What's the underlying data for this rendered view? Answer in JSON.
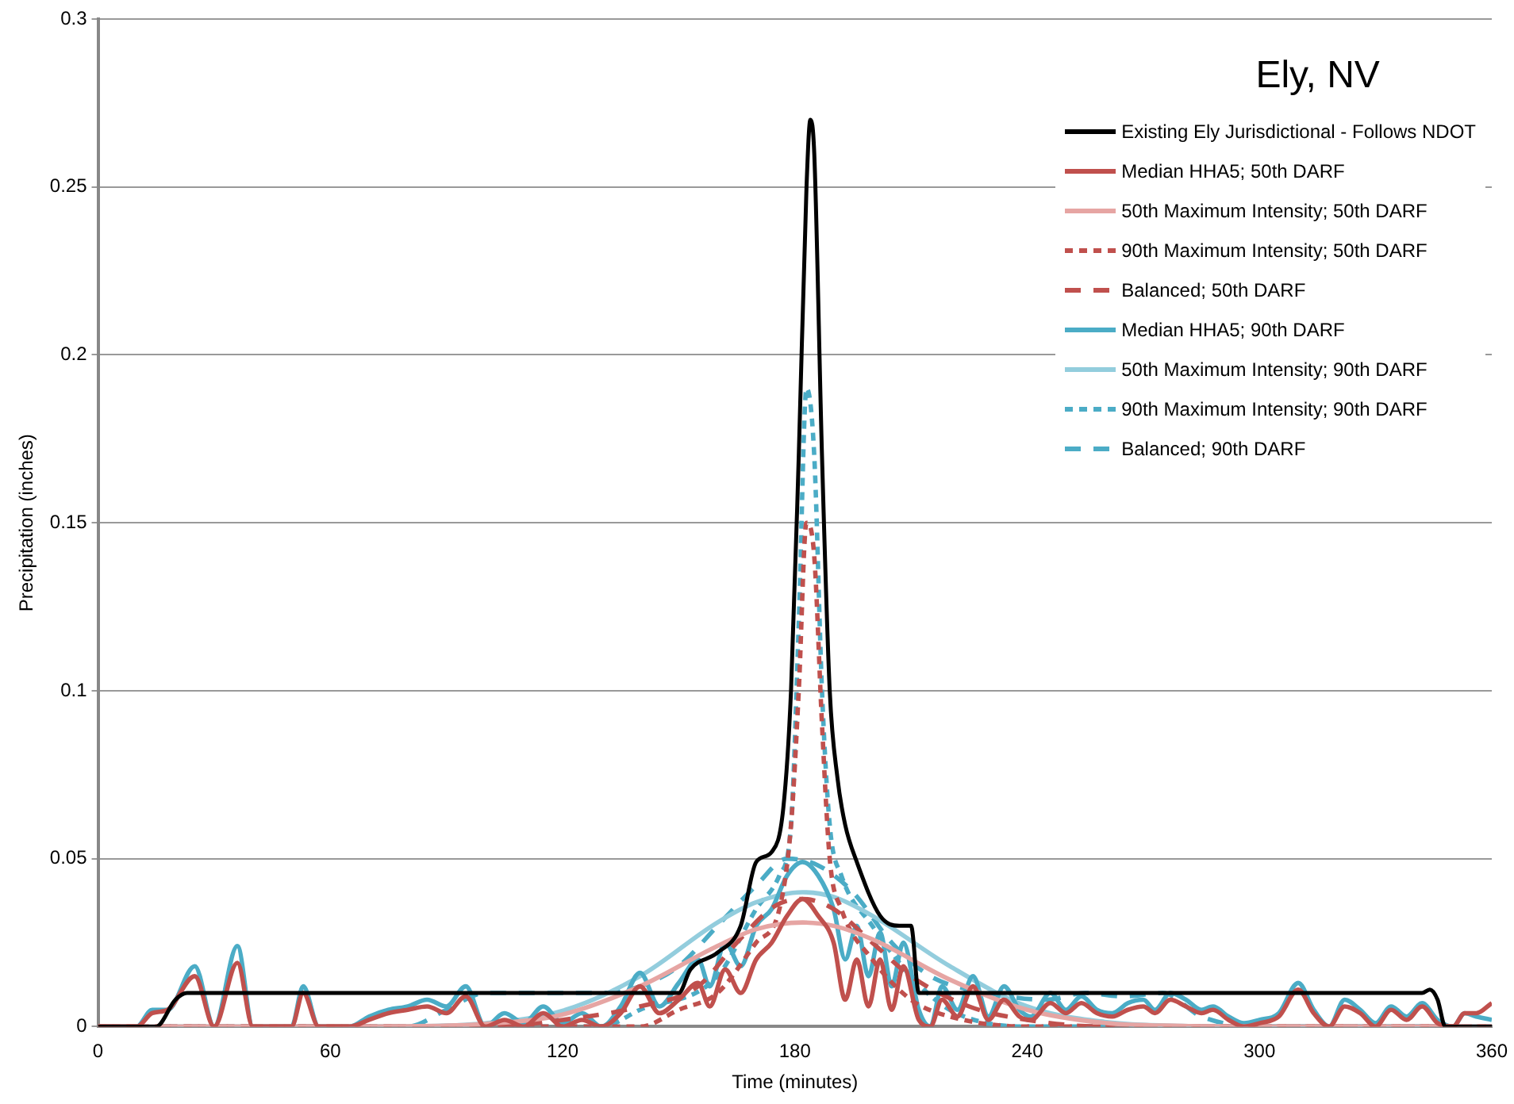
{
  "chart_data": {
    "type": "line",
    "title": "Ely, NV",
    "xlabel": "Time (minutes)",
    "ylabel": "Precipitation (inches)",
    "xlim": [
      0,
      360
    ],
    "xticks": [
      0,
      60,
      120,
      180,
      240,
      300,
      360
    ],
    "ylim": [
      0,
      0.3
    ],
    "yticks": [
      0,
      0.05,
      0.1,
      0.15,
      0.2,
      0.25,
      0.3
    ],
    "grid": "y",
    "legend": "top right",
    "marker": "none",
    "series": [
      {
        "name": "Existing Ely Jurisdictional - Follows NDOT",
        "color": "#000000",
        "line_style": "solid",
        "x": [
          0,
          15,
          20,
          23,
          150,
          153,
          160,
          166,
          170,
          174,
          177,
          179,
          181,
          183,
          184,
          185,
          187,
          189,
          191,
          193,
          196,
          202,
          207,
          210,
          212,
          342,
          344,
          346,
          348,
          360
        ],
        "values": [
          0,
          0,
          0.008,
          0.01,
          0.01,
          0.017,
          0.022,
          0.03,
          0.049,
          0.052,
          0.065,
          0.1,
          0.17,
          0.25,
          0.27,
          0.26,
          0.17,
          0.1,
          0.074,
          0.06,
          0.049,
          0.033,
          0.03,
          0.03,
          0.01,
          0.01,
          0.011,
          0.008,
          0,
          0
        ]
      },
      {
        "name": "Median HHA5; 50th DARF",
        "color": "#c0504d",
        "line_style": "solid",
        "x": [
          0,
          10,
          14,
          18,
          25,
          30,
          36,
          40,
          50,
          53,
          57,
          65,
          70,
          75,
          80,
          85,
          90,
          95,
          100,
          105,
          110,
          115,
          120,
          125,
          130,
          135,
          140,
          145,
          150,
          155,
          158,
          162,
          166,
          170,
          174,
          178,
          182,
          186,
          190,
          193,
          196,
          199,
          202,
          205,
          208,
          212,
          215,
          218,
          222,
          226,
          230,
          234,
          238,
          241,
          246,
          250,
          254,
          258,
          262,
          266,
          270,
          273,
          277,
          281,
          285,
          288,
          292,
          296,
          300,
          305,
          310,
          314,
          318,
          322,
          326,
          330,
          334,
          338,
          342,
          346,
          350,
          353,
          356,
          360
        ],
        "values": [
          0,
          0,
          0.004,
          0.005,
          0.015,
          0,
          0.019,
          0,
          0,
          0.01,
          0,
          0,
          0.002,
          0.004,
          0.005,
          0.006,
          0.004,
          0.009,
          0,
          0.002,
          0,
          0.004,
          0,
          0.002,
          0,
          0.004,
          0.012,
          0.004,
          0.008,
          0.013,
          0.006,
          0.017,
          0.01,
          0.02,
          0.025,
          0.033,
          0.038,
          0.033,
          0.025,
          0.008,
          0.02,
          0.006,
          0.02,
          0.005,
          0.018,
          0.002,
          0,
          0.008,
          0.003,
          0.012,
          0.002,
          0.008,
          0.003,
          0.002,
          0.007,
          0.004,
          0.007,
          0.004,
          0.003,
          0.005,
          0.006,
          0.004,
          0.008,
          0.006,
          0.004,
          0.005,
          0.002,
          0,
          0.001,
          0.003,
          0.011,
          0.004,
          0,
          0.006,
          0.004,
          0,
          0.005,
          0.002,
          0.006,
          0.001,
          0,
          0.004,
          0.004,
          0.007
        ]
      },
      {
        "name": "50th Maximum Intensity; 50th DARF",
        "color": "#e6a5a3",
        "line_style": "solid",
        "x": [
          0,
          60,
          80,
          100,
          120,
          140,
          160,
          170,
          182,
          190,
          200,
          220,
          240,
          260,
          280,
          300,
          360
        ],
        "values": [
          0,
          0,
          0.0001,
          0.0008,
          0.0036,
          0.012,
          0.024,
          0.029,
          0.031,
          0.03,
          0.026,
          0.014,
          0.005,
          0.0011,
          0.0002,
          0,
          0
        ]
      },
      {
        "name": "90th Maximum Intensity; 50th DARF",
        "color": "#c0504d",
        "line_style": "dotted",
        "x": [
          0,
          140,
          150,
          160,
          170,
          176,
          179,
          181,
          183,
          185,
          187,
          189,
          192,
          200,
          210,
          220,
          240,
          360
        ],
        "values": [
          0,
          0,
          0.005,
          0.01,
          0.025,
          0.035,
          0.06,
          0.1,
          0.15,
          0.14,
          0.09,
          0.05,
          0.035,
          0.02,
          0.008,
          0.003,
          0,
          0
        ]
      },
      {
        "name": "Balanced; 50th DARF",
        "color": "#c0504d",
        "line_style": "dashed",
        "x": [
          0,
          100,
          120,
          140,
          155,
          165,
          175,
          182,
          190,
          200,
          210,
          225,
          240,
          260,
          360
        ],
        "values": [
          0,
          0,
          0.002,
          0.006,
          0.012,
          0.025,
          0.036,
          0.038,
          0.035,
          0.025,
          0.015,
          0.006,
          0.002,
          0,
          0
        ]
      },
      {
        "name": "Median HHA5; 90th DARF",
        "color": "#4bacc6",
        "line_style": "solid",
        "x": [
          0,
          10,
          14,
          18,
          25,
          30,
          36,
          40,
          50,
          53,
          57,
          65,
          70,
          75,
          80,
          85,
          90,
          95,
          100,
          105,
          110,
          115,
          120,
          125,
          130,
          135,
          140,
          145,
          150,
          155,
          158,
          162,
          166,
          170,
          174,
          178,
          182,
          186,
          190,
          193,
          196,
          199,
          202,
          205,
          208,
          212,
          215,
          218,
          222,
          226,
          230,
          234,
          238,
          241,
          246,
          250,
          254,
          258,
          262,
          266,
          270,
          273,
          277,
          281,
          285,
          288,
          292,
          296,
          300,
          305,
          310,
          314,
          318,
          322,
          326,
          330,
          334,
          338,
          342,
          346,
          350,
          353,
          356,
          360
        ],
        "values": [
          0,
          0,
          0.005,
          0.005,
          0.018,
          0,
          0.024,
          0,
          0,
          0.012,
          0,
          0,
          0.003,
          0.005,
          0.006,
          0.008,
          0.006,
          0.012,
          0,
          0.004,
          0.001,
          0.006,
          0.001,
          0.004,
          0,
          0.006,
          0.016,
          0.006,
          0.013,
          0.02,
          0.012,
          0.025,
          0.018,
          0.03,
          0.035,
          0.045,
          0.049,
          0.045,
          0.035,
          0.02,
          0.03,
          0.015,
          0.028,
          0.012,
          0.025,
          0.005,
          0,
          0.012,
          0.005,
          0.015,
          0.003,
          0.012,
          0.005,
          0.003,
          0.01,
          0.005,
          0.009,
          0.005,
          0.004,
          0.007,
          0.008,
          0.005,
          0.01,
          0.008,
          0.005,
          0.006,
          0.003,
          0.001,
          0.002,
          0.004,
          0.013,
          0.005,
          0,
          0.008,
          0.005,
          0.001,
          0.006,
          0.003,
          0.007,
          0.002,
          0,
          0.004,
          0.003,
          0.002
        ]
      },
      {
        "name": "50th Maximum Intensity; 90th DARF",
        "color": "#93cddd",
        "line_style": "solid",
        "x": [
          0,
          60,
          80,
          100,
          120,
          140,
          160,
          170,
          182,
          190,
          200,
          220,
          240,
          260,
          280,
          300,
          360
        ],
        "values": [
          0,
          0,
          0.0001,
          0.001,
          0.0047,
          0.015,
          0.031,
          0.037,
          0.04,
          0.0386,
          0.033,
          0.018,
          0.006,
          0.0014,
          0.0002,
          0,
          0
        ]
      },
      {
        "name": "90th Maximum Intensity; 90th DARF",
        "color": "#4bacc6",
        "line_style": "dotted",
        "x": [
          0,
          130,
          140,
          160,
          170,
          176,
          179,
          181,
          183,
          185,
          187,
          189,
          192,
          200,
          210,
          220,
          240,
          360
        ],
        "values": [
          0,
          0,
          0.005,
          0.015,
          0.035,
          0.045,
          0.06,
          0.12,
          0.19,
          0.17,
          0.1,
          0.06,
          0.045,
          0.03,
          0.015,
          0.005,
          0,
          0
        ]
      },
      {
        "name": "Balanced; 90th DARF",
        "color": "#4bacc6",
        "line_style": "dashed",
        "x": [
          0,
          80,
          90,
          100,
          110,
          120,
          130,
          140,
          150,
          160,
          170,
          178,
          186,
          195,
          205,
          215,
          230,
          245,
          255,
          265,
          275,
          285,
          300,
          360
        ],
        "values": [
          0,
          0,
          0.005,
          0.01,
          0.01,
          0.01,
          0.01,
          0.012,
          0.018,
          0.03,
          0.042,
          0.05,
          0.048,
          0.04,
          0.025,
          0.015,
          0.01,
          0.008,
          0.01,
          0.009,
          0.01,
          0.003,
          0,
          0
        ]
      }
    ]
  }
}
